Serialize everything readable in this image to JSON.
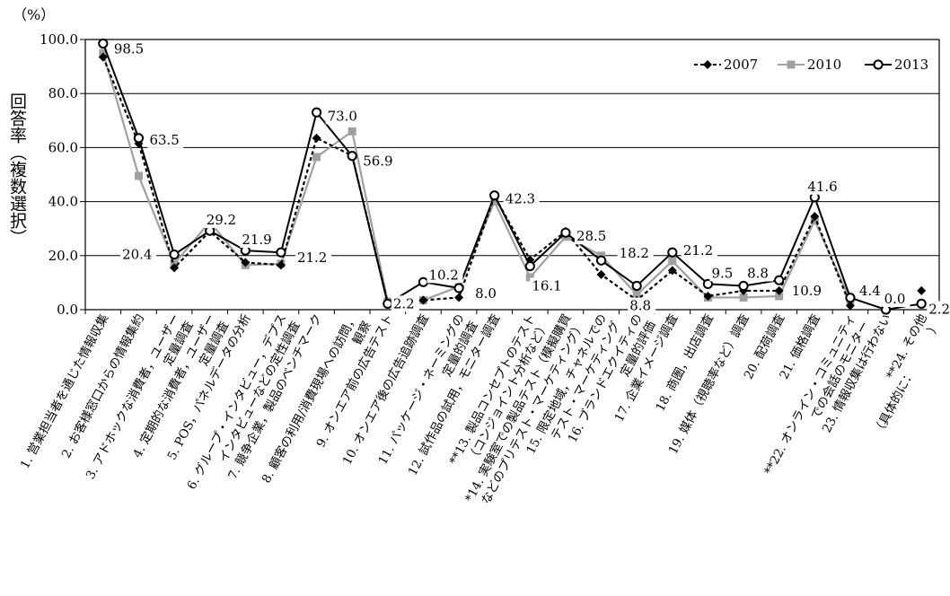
{
  "chart_data": {
    "type": "line",
    "unit_label": "（%）",
    "ylabel": "回答率（複数選択）",
    "ylim": [
      0,
      100
    ],
    "yticks": [
      "0.0",
      "20.0",
      "40.0",
      "60.0",
      "80.0",
      "100.0"
    ],
    "grid": "horizontal",
    "legend_position": "top-right",
    "categories": [
      [
        "1. 営業担当者を通じた情報収集"
      ],
      [
        "2. お客様窓口からの情報集約"
      ],
      [
        "3. アドホックな消費者，ユーザー",
        "定量調査"
      ],
      [
        "4. 定期的な消費者，ユーザー",
        "定量調査"
      ],
      [
        "5. POS，パネルデータの分析"
      ],
      [
        "6. グループ・インタビュー，デプス",
        "インタビューなどの定性調査"
      ],
      [
        "7. 競争企業，製品のベンチマーク"
      ],
      [
        "8. 顧客の利用/消費現場への訪問，",
        "観察"
      ],
      [
        "9. オンエア前の広告テスト"
      ],
      [
        "10. オンエア後の広告追跡調査"
      ],
      [
        "11. パッケージ・ネーミングの",
        "定量的調査"
      ],
      [
        "12. 試作品の試用，モニター調査"
      ],
      [
        "**13. 製品コンセプトのテスト",
        "（コンジョイント分析など）"
      ],
      [
        "*14. 実験室での製品テスト（模擬購買",
        "などのプリテスト・マーケティング）"
      ],
      [
        "15. 限定地域，チャネルでの",
        "テスト・マーケティング"
      ],
      [
        "16. ブランドエクイティの",
        "定量的評価"
      ],
      [
        "17. 企業イメージ調査"
      ],
      [
        "18. 商圏，出店調査"
      ],
      [
        "19. 媒体（視聴率など）調査"
      ],
      [
        "20. 配荷調査"
      ],
      [
        "21. 価格調査"
      ],
      [
        "**22. オンライン・コミュニティ",
        "での会話のモニター"
      ],
      [
        "23. 情報収集は行わない"
      ],
      [
        "**24. その他",
        "（具体的に：　　　　）"
      ]
    ],
    "series": [
      {
        "name": "2007",
        "color": "#000000",
        "marker": "diamond",
        "dash": "4,3",
        "values": [
          93.5,
          61.5,
          15.5,
          29.0,
          17.5,
          16.5,
          63.5,
          57.0,
          2.5,
          3.5,
          4.5,
          42.0,
          18.5,
          29.0,
          13.0,
          3.5,
          14.5,
          5.0,
          7.0,
          7.0,
          34.5,
          1.5,
          null,
          7.0
        ]
      },
      {
        "name": "2010",
        "color": "#a0a0a0",
        "marker": "square",
        "dash": "",
        "values": [
          95.0,
          49.5,
          17.0,
          32.5,
          16.5,
          17.0,
          56.5,
          66.0,
          3.0,
          3.5,
          8.5,
          40.0,
          12.0,
          27.0,
          20.0,
          5.5,
          18.0,
          4.5,
          4.5,
          5.0,
          33.0,
          3.5,
          null,
          null
        ]
      },
      {
        "name": "2013",
        "color": "#000000",
        "marker": "circle",
        "dash": "",
        "values": [
          98.5,
          63.5,
          20.4,
          29.2,
          21.9,
          21.2,
          73.0,
          56.9,
          2.2,
          10.2,
          8.0,
          42.3,
          16.1,
          28.5,
          18.2,
          8.8,
          21.2,
          9.5,
          8.8,
          10.9,
          41.6,
          4.4,
          0.0,
          2.2
        ]
      }
    ],
    "data_labels": [
      {
        "category_index": 0,
        "text": "98.5",
        "dx": 12,
        "dy": 6
      },
      {
        "category_index": 1,
        "text": "63.5",
        "dx": 12,
        "dy": 2
      },
      {
        "category_index": 2,
        "text": "20.4",
        "dx": -58,
        "dy": 0
      },
      {
        "category_index": 3,
        "text": "29.2",
        "dx": -4,
        "dy": -12
      },
      {
        "category_index": 4,
        "text": "21.9",
        "dx": -4,
        "dy": -12
      },
      {
        "category_index": 5,
        "text": "21.2",
        "dx": 18,
        "dy": 6
      },
      {
        "category_index": 6,
        "text": "73.0",
        "dx": 12,
        "dy": 4
      },
      {
        "category_index": 7,
        "text": "56.9",
        "dx": 12,
        "dy": 6
      },
      {
        "category_index": 8,
        "text": "2.2",
        "dx": 6,
        "dy": 0
      },
      {
        "category_index": 9,
        "text": "10.2",
        "dx": 6,
        "dy": -8
      },
      {
        "category_index": 10,
        "text": "8.0",
        "dx": 18,
        "dy": 6
      },
      {
        "category_index": 11,
        "text": "42.3",
        "dx": 12,
        "dy": 4
      },
      {
        "category_index": 12,
        "text": "16.1",
        "dx": 2,
        "dy": 22
      },
      {
        "category_index": 13,
        "text": "28.5",
        "dx": 12,
        "dy": 4
      },
      {
        "category_index": 14,
        "text": "18.2",
        "dx": 20,
        "dy": -8
      },
      {
        "category_index": 15,
        "text": "8.8",
        "dx": -8,
        "dy": 22
      },
      {
        "category_index": 16,
        "text": "21.2",
        "dx": 12,
        "dy": -2
      },
      {
        "category_index": 17,
        "text": "9.5",
        "dx": 4,
        "dy": -12
      },
      {
        "category_index": 18,
        "text": "8.8",
        "dx": 4,
        "dy": -14
      },
      {
        "category_index": 19,
        "text": "10.9",
        "dx": 14,
        "dy": 12
      },
      {
        "category_index": 20,
        "text": "41.6",
        "dx": -8,
        "dy": -12
      },
      {
        "category_index": 21,
        "text": "4.4",
        "dx": 10,
        "dy": -8
      },
      {
        "category_index": 22,
        "text": "0.0",
        "dx": -2,
        "dy": -12
      },
      {
        "category_index": 23,
        "text": "2.2",
        "dx": 8,
        "dy": 6
      }
    ]
  }
}
